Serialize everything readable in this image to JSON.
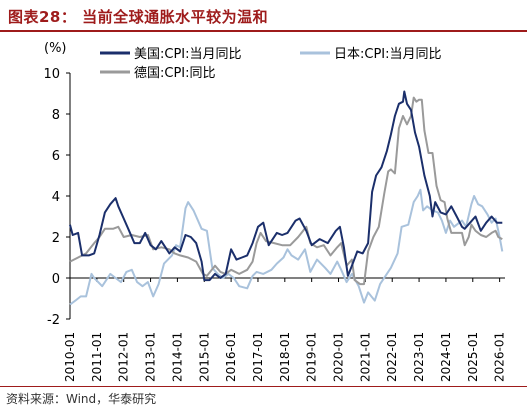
{
  "header": {
    "title": "图表28：  当前全球通胀水平较为温和"
  },
  "footer": {
    "source": "资料来源：Wind，华泰研究"
  },
  "chart_data": {
    "type": "line",
    "ylabel": "(%)",
    "ylim": [
      -2,
      10
    ],
    "yticks": [
      -2,
      0,
      2,
      4,
      6,
      8,
      10
    ],
    "xlim": [
      2010.0,
      2026.2
    ],
    "xticks": [
      "2010-01",
      "2011-01",
      "2012-01",
      "2013-01",
      "2014-01",
      "2015-01",
      "2016-01",
      "2017-01",
      "2018-01",
      "2019-01",
      "2020-01",
      "2021-01",
      "2022-01",
      "2023-01",
      "2024-01",
      "2025-01",
      "2026-01"
    ],
    "legend_position": "top-left",
    "series": [
      {
        "name": "美国:CPI:当月同比",
        "color": "#1b2f6b",
        "points": [
          [
            2010.0,
            2.6
          ],
          [
            2010.1,
            2.1
          ],
          [
            2010.3,
            2.2
          ],
          [
            2010.45,
            1.1
          ],
          [
            2010.7,
            1.1
          ],
          [
            2010.9,
            1.2
          ],
          [
            2011.1,
            2.1
          ],
          [
            2011.3,
            3.2
          ],
          [
            2011.5,
            3.6
          ],
          [
            2011.7,
            3.9
          ],
          [
            2011.8,
            3.5
          ],
          [
            2012.0,
            2.9
          ],
          [
            2012.2,
            2.3
          ],
          [
            2012.4,
            1.7
          ],
          [
            2012.6,
            1.7
          ],
          [
            2012.8,
            2.2
          ],
          [
            2013.0,
            1.6
          ],
          [
            2013.2,
            1.4
          ],
          [
            2013.4,
            1.8
          ],
          [
            2013.7,
            1.2
          ],
          [
            2013.9,
            1.5
          ],
          [
            2014.1,
            1.3
          ],
          [
            2014.3,
            2.1
          ],
          [
            2014.5,
            2.0
          ],
          [
            2014.7,
            1.7
          ],
          [
            2014.9,
            0.8
          ],
          [
            2015.0,
            -0.1
          ],
          [
            2015.2,
            -0.1
          ],
          [
            2015.4,
            0.2
          ],
          [
            2015.6,
            0.0
          ],
          [
            2015.8,
            0.2
          ],
          [
            2016.0,
            1.4
          ],
          [
            2016.2,
            0.9
          ],
          [
            2016.4,
            1.0
          ],
          [
            2016.6,
            1.1
          ],
          [
            2016.8,
            1.7
          ],
          [
            2017.0,
            2.5
          ],
          [
            2017.2,
            2.7
          ],
          [
            2017.4,
            1.6
          ],
          [
            2017.7,
            2.2
          ],
          [
            2017.9,
            2.1
          ],
          [
            2018.1,
            2.2
          ],
          [
            2018.4,
            2.8
          ],
          [
            2018.55,
            2.9
          ],
          [
            2018.8,
            2.3
          ],
          [
            2019.0,
            1.6
          ],
          [
            2019.3,
            1.9
          ],
          [
            2019.6,
            1.7
          ],
          [
            2019.9,
            2.3
          ],
          [
            2020.05,
            2.5
          ],
          [
            2020.2,
            1.5
          ],
          [
            2020.35,
            0.1
          ],
          [
            2020.5,
            0.6
          ],
          [
            2020.7,
            1.3
          ],
          [
            2020.9,
            1.2
          ],
          [
            2021.1,
            1.7
          ],
          [
            2021.25,
            4.2
          ],
          [
            2021.4,
            5.0
          ],
          [
            2021.6,
            5.4
          ],
          [
            2021.8,
            6.2
          ],
          [
            2021.95,
            7.0
          ],
          [
            2022.1,
            7.9
          ],
          [
            2022.25,
            8.5
          ],
          [
            2022.4,
            8.6
          ],
          [
            2022.45,
            9.1
          ],
          [
            2022.55,
            8.5
          ],
          [
            2022.7,
            8.2
          ],
          [
            2022.85,
            7.1
          ],
          [
            2023.0,
            6.4
          ],
          [
            2023.2,
            5.0
          ],
          [
            2023.4,
            4.0
          ],
          [
            2023.5,
            3.0
          ],
          [
            2023.6,
            3.7
          ],
          [
            2023.8,
            3.2
          ],
          [
            2024.0,
            3.1
          ],
          [
            2024.2,
            3.5
          ],
          [
            2024.4,
            3.0
          ],
          [
            2024.6,
            2.5
          ],
          [
            2024.7,
            2.4
          ],
          [
            2024.9,
            2.7
          ],
          [
            2025.1,
            3.0
          ],
          [
            2025.3,
            2.3
          ],
          [
            2025.5,
            2.7
          ],
          [
            2025.7,
            3.0
          ],
          [
            2025.9,
            2.7
          ],
          [
            2026.1,
            2.7
          ]
        ]
      },
      {
        "name": "日本:CPI:当月同比",
        "color": "#a9c2dc",
        "points": [
          [
            2010.0,
            -1.3
          ],
          [
            2010.2,
            -1.1
          ],
          [
            2010.4,
            -0.9
          ],
          [
            2010.6,
            -0.9
          ],
          [
            2010.8,
            0.2
          ],
          [
            2010.9,
            0.0
          ],
          [
            2011.2,
            -0.4
          ],
          [
            2011.5,
            0.2
          ],
          [
            2011.7,
            0.0
          ],
          [
            2011.9,
            -0.2
          ],
          [
            2012.1,
            0.3
          ],
          [
            2012.3,
            0.4
          ],
          [
            2012.5,
            -0.2
          ],
          [
            2012.7,
            -0.4
          ],
          [
            2012.9,
            -0.2
          ],
          [
            2013.1,
            -0.9
          ],
          [
            2013.3,
            -0.3
          ],
          [
            2013.5,
            0.7
          ],
          [
            2013.8,
            1.1
          ],
          [
            2013.95,
            1.6
          ],
          [
            2014.1,
            1.5
          ],
          [
            2014.3,
            3.4
          ],
          [
            2014.4,
            3.7
          ],
          [
            2014.6,
            3.3
          ],
          [
            2014.9,
            2.4
          ],
          [
            2015.1,
            2.3
          ],
          [
            2015.3,
            0.5
          ],
          [
            2015.5,
            0.2
          ],
          [
            2015.7,
            0.0
          ],
          [
            2015.9,
            0.2
          ],
          [
            2016.1,
            0.0
          ],
          [
            2016.3,
            -0.4
          ],
          [
            2016.6,
            -0.5
          ],
          [
            2016.8,
            0.1
          ],
          [
            2016.95,
            0.3
          ],
          [
            2017.2,
            0.2
          ],
          [
            2017.5,
            0.4
          ],
          [
            2017.7,
            0.7
          ],
          [
            2017.95,
            1.0
          ],
          [
            2018.1,
            1.4
          ],
          [
            2018.25,
            1.1
          ],
          [
            2018.5,
            0.9
          ],
          [
            2018.75,
            1.4
          ],
          [
            2018.95,
            0.3
          ],
          [
            2019.2,
            0.9
          ],
          [
            2019.5,
            0.5
          ],
          [
            2019.7,
            0.2
          ],
          [
            2019.95,
            0.8
          ],
          [
            2020.1,
            0.4
          ],
          [
            2020.3,
            -0.2
          ],
          [
            2020.5,
            0.2
          ],
          [
            2020.75,
            -0.4
          ],
          [
            2020.95,
            -1.2
          ],
          [
            2021.1,
            -0.7
          ],
          [
            2021.35,
            -1.1
          ],
          [
            2021.55,
            -0.3
          ],
          [
            2021.75,
            0.1
          ],
          [
            2021.95,
            0.5
          ],
          [
            2022.2,
            1.2
          ],
          [
            2022.35,
            2.5
          ],
          [
            2022.6,
            2.6
          ],
          [
            2022.8,
            3.7
          ],
          [
            2022.95,
            4.0
          ],
          [
            2023.05,
            4.3
          ],
          [
            2023.15,
            3.3
          ],
          [
            2023.3,
            3.5
          ],
          [
            2023.5,
            3.3
          ],
          [
            2023.7,
            3.2
          ],
          [
            2023.85,
            2.8
          ],
          [
            2024.0,
            2.2
          ],
          [
            2024.15,
            2.8
          ],
          [
            2024.3,
            2.5
          ],
          [
            2024.6,
            2.8
          ],
          [
            2024.75,
            2.5
          ],
          [
            2024.95,
            3.6
          ],
          [
            2025.05,
            4.0
          ],
          [
            2025.2,
            3.6
          ],
          [
            2025.35,
            3.5
          ],
          [
            2025.55,
            3.1
          ],
          [
            2025.7,
            2.7
          ],
          [
            2025.85,
            2.9
          ],
          [
            2026.0,
            2.0
          ],
          [
            2026.1,
            1.3
          ]
        ]
      },
      {
        "name": "德国:CPI:同比",
        "color": "#9a9a9a",
        "points": [
          [
            2010.0,
            0.8
          ],
          [
            2010.3,
            1.0
          ],
          [
            2010.6,
            1.2
          ],
          [
            2010.9,
            1.7
          ],
          [
            2011.1,
            2.0
          ],
          [
            2011.3,
            2.4
          ],
          [
            2011.6,
            2.4
          ],
          [
            2011.8,
            2.5
          ],
          [
            2012.0,
            2.0
          ],
          [
            2012.3,
            2.1
          ],
          [
            2012.6,
            2.0
          ],
          [
            2012.9,
            2.1
          ],
          [
            2013.1,
            1.4
          ],
          [
            2013.4,
            1.5
          ],
          [
            2013.7,
            1.4
          ],
          [
            2013.9,
            1.2
          ],
          [
            2014.1,
            1.1
          ],
          [
            2014.4,
            1.0
          ],
          [
            2014.7,
            0.8
          ],
          [
            2014.95,
            0.2
          ],
          [
            2015.1,
            0.1
          ],
          [
            2015.4,
            0.6
          ],
          [
            2015.6,
            0.3
          ],
          [
            2015.8,
            0.2
          ],
          [
            2016.0,
            0.4
          ],
          [
            2016.3,
            0.2
          ],
          [
            2016.6,
            0.4
          ],
          [
            2016.8,
            0.8
          ],
          [
            2016.95,
            1.7
          ],
          [
            2017.1,
            2.2
          ],
          [
            2017.3,
            1.8
          ],
          [
            2017.6,
            1.7
          ],
          [
            2017.9,
            1.6
          ],
          [
            2018.2,
            1.6
          ],
          [
            2018.5,
            2.0
          ],
          [
            2018.8,
            2.5
          ],
          [
            2018.95,
            1.7
          ],
          [
            2019.2,
            1.5
          ],
          [
            2019.45,
            1.6
          ],
          [
            2019.7,
            1.1
          ],
          [
            2019.95,
            1.5
          ],
          [
            2020.1,
            1.7
          ],
          [
            2020.3,
            0.6
          ],
          [
            2020.5,
            0.9
          ],
          [
            2020.6,
            -0.1
          ],
          [
            2020.8,
            -0.3
          ],
          [
            2020.95,
            -0.3
          ],
          [
            2021.1,
            1.3
          ],
          [
            2021.3,
            2.0
          ],
          [
            2021.5,
            2.5
          ],
          [
            2021.7,
            4.1
          ],
          [
            2021.85,
            5.2
          ],
          [
            2021.95,
            5.3
          ],
          [
            2022.1,
            5.1
          ],
          [
            2022.25,
            7.3
          ],
          [
            2022.4,
            7.9
          ],
          [
            2022.55,
            7.5
          ],
          [
            2022.7,
            7.9
          ],
          [
            2022.8,
            8.8
          ],
          [
            2022.9,
            8.6
          ],
          [
            2023.0,
            8.7
          ],
          [
            2023.1,
            8.7
          ],
          [
            2023.2,
            7.2
          ],
          [
            2023.35,
            6.1
          ],
          [
            2023.5,
            6.1
          ],
          [
            2023.65,
            4.5
          ],
          [
            2023.8,
            3.8
          ],
          [
            2023.95,
            3.7
          ],
          [
            2024.05,
            2.9
          ],
          [
            2024.2,
            2.2
          ],
          [
            2024.4,
            2.2
          ],
          [
            2024.6,
            2.2
          ],
          [
            2024.7,
            1.6
          ],
          [
            2024.85,
            2.0
          ],
          [
            2024.95,
            2.6
          ],
          [
            2025.1,
            2.3
          ],
          [
            2025.3,
            2.1
          ],
          [
            2025.5,
            2.0
          ],
          [
            2025.7,
            2.2
          ],
          [
            2025.85,
            2.3
          ],
          [
            2025.95,
            2.0
          ],
          [
            2026.1,
            1.9
          ]
        ]
      }
    ]
  }
}
